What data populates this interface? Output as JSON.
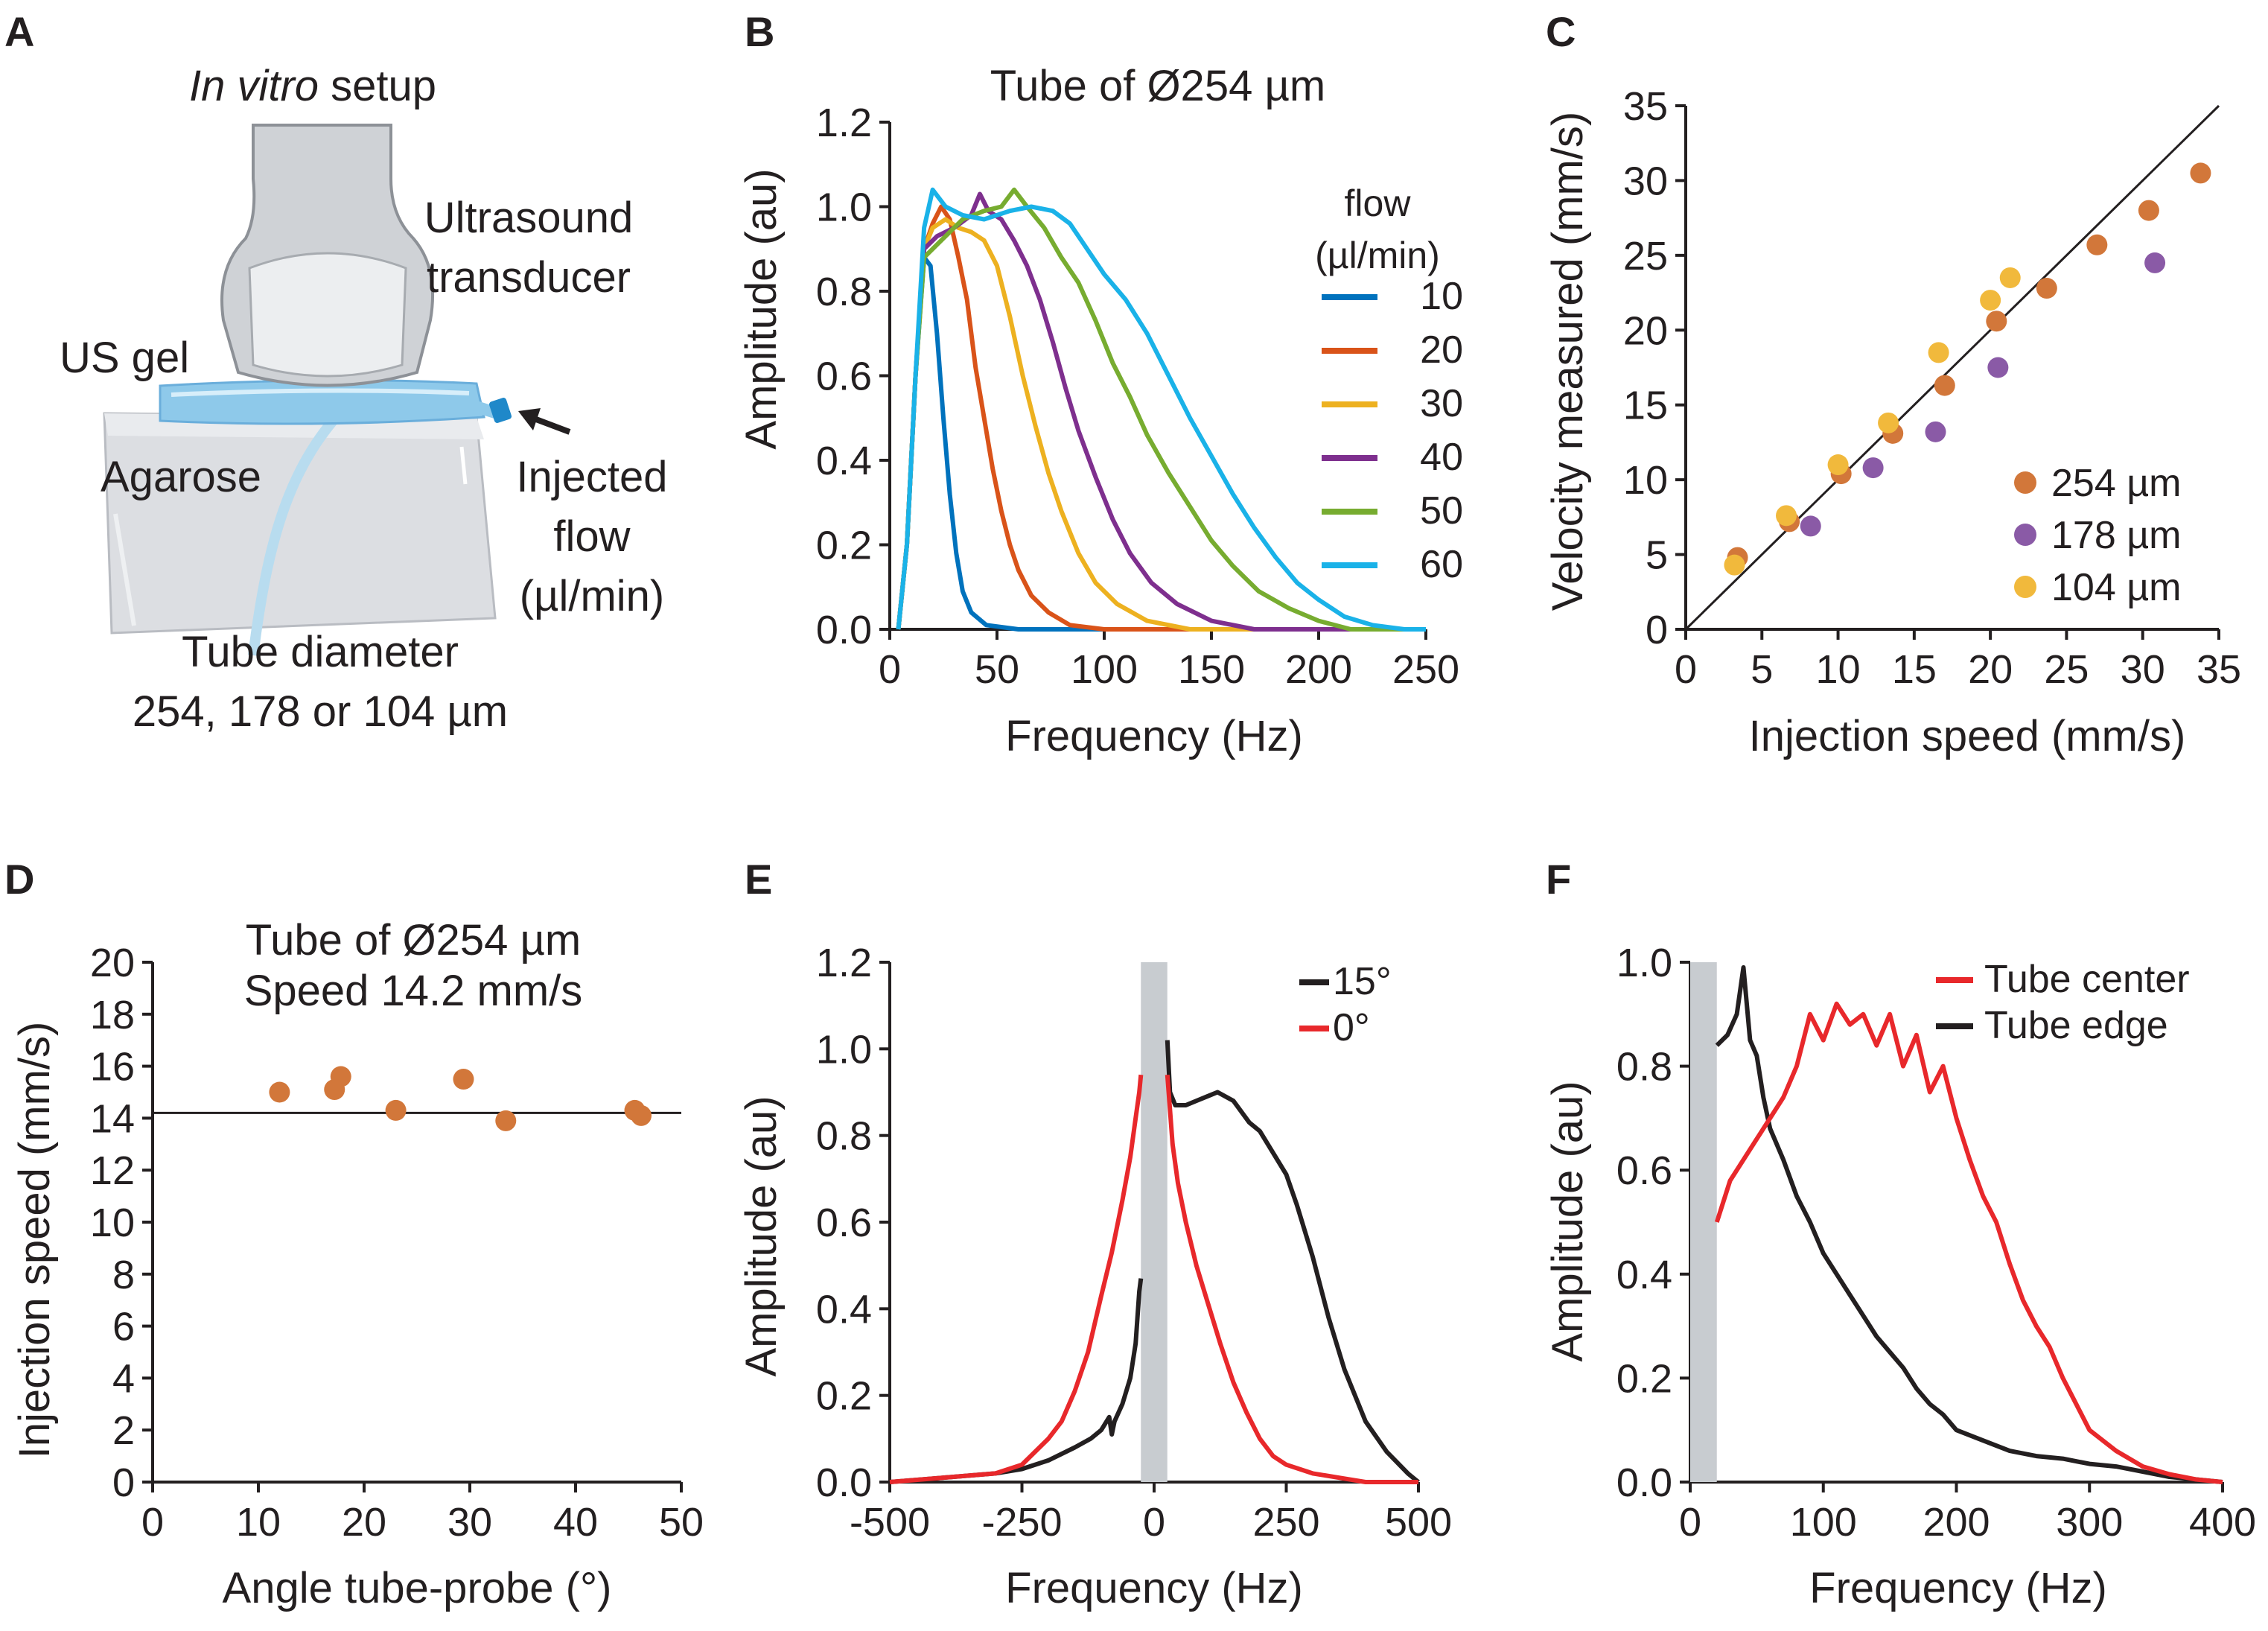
{
  "panel_labels": [
    "A",
    "B",
    "C",
    "D",
    "E",
    "F"
  ],
  "setup": {
    "title_italic": "In vitro",
    "title_rest": " setup",
    "transducer_line1": "Ultrasound",
    "transducer_line2": "transducer",
    "gel_label": "US gel",
    "agarose_label": "Agarose",
    "flow_line1": "Injected",
    "flow_line2": "flow",
    "flow_line3": "(µl/min)",
    "tube_line1": "Tube diameter",
    "tube_line2": "254, 178 or 104 µm"
  },
  "colors": {
    "flow10": "#0072bd",
    "flow20": "#d95319",
    "flow30": "#edb120",
    "flow40": "#7e2f8e",
    "flow50": "#77ac30",
    "flow60": "#1ab2e8",
    "orange_point": "#d2773a",
    "purple_point": "#8a5aa6",
    "yellow_point": "#f1b93c",
    "red_line": "#e8282b",
    "black_line": "#231f20",
    "gray_band": "#c8ccd0"
  },
  "chart_data": [
    {
      "id": "B",
      "type": "line",
      "title": "Tube of Ø254 µm",
      "xlabel": "Frequency (Hz)",
      "ylabel": "Amplitude (au)",
      "xlim": [
        0,
        250
      ],
      "ylim": [
        0,
        1.2
      ],
      "xticks": [
        "0",
        "50",
        "100",
        "150",
        "200",
        "250"
      ],
      "yticks": [
        "0.0",
        "0.2",
        "0.4",
        "0.6",
        "0.8",
        "1.0",
        "1.2"
      ],
      "legend_title_line1": "flow",
      "legend_title_line2": "(µl/min)",
      "series": [
        {
          "name": "10",
          "color_key": "flow10",
          "x": [
            4,
            8,
            12,
            16,
            19,
            22,
            25,
            28,
            31,
            34,
            38,
            45,
            60,
            250
          ],
          "y": [
            0,
            0.2,
            0.6,
            0.88,
            0.86,
            0.7,
            0.5,
            0.32,
            0.18,
            0.09,
            0.04,
            0.01,
            0,
            0
          ]
        },
        {
          "name": "20",
          "color_key": "flow20",
          "x": [
            4,
            8,
            12,
            16,
            20,
            24,
            28,
            32,
            36,
            40,
            44,
            48,
            52,
            56,
            60,
            66,
            74,
            84,
            100,
            250
          ],
          "y": [
            0,
            0.2,
            0.6,
            0.9,
            0.96,
            1.0,
            0.97,
            0.88,
            0.78,
            0.62,
            0.5,
            0.38,
            0.28,
            0.2,
            0.14,
            0.08,
            0.04,
            0.01,
            0,
            0
          ]
        },
        {
          "name": "30",
          "color_key": "flow30",
          "x": [
            4,
            8,
            12,
            16,
            20,
            26,
            32,
            38,
            44,
            50,
            56,
            62,
            68,
            74,
            80,
            88,
            96,
            106,
            120,
            140,
            250
          ],
          "y": [
            0,
            0.2,
            0.6,
            0.9,
            0.95,
            0.97,
            0.95,
            0.94,
            0.92,
            0.86,
            0.74,
            0.6,
            0.48,
            0.37,
            0.28,
            0.18,
            0.11,
            0.06,
            0.02,
            0,
            0
          ]
        },
        {
          "name": "40",
          "color_key": "flow40",
          "x": [
            4,
            8,
            12,
            16,
            22,
            30,
            38,
            42,
            46,
            52,
            58,
            64,
            70,
            76,
            82,
            88,
            96,
            104,
            112,
            122,
            134,
            150,
            170,
            250
          ],
          "y": [
            0,
            0.2,
            0.6,
            0.9,
            0.93,
            0.95,
            0.98,
            1.03,
            0.99,
            0.97,
            0.92,
            0.86,
            0.78,
            0.68,
            0.57,
            0.47,
            0.36,
            0.26,
            0.18,
            0.11,
            0.06,
            0.02,
            0,
            0
          ]
        },
        {
          "name": "50",
          "color_key": "flow50",
          "x": [
            4,
            8,
            12,
            16,
            24,
            34,
            44,
            52,
            58,
            64,
            72,
            80,
            88,
            96,
            104,
            112,
            120,
            130,
            140,
            150,
            160,
            172,
            186,
            200,
            215,
            250
          ],
          "y": [
            0,
            0.2,
            0.6,
            0.88,
            0.92,
            0.97,
            0.99,
            1.0,
            1.04,
            1.0,
            0.95,
            0.88,
            0.82,
            0.73,
            0.63,
            0.55,
            0.46,
            0.37,
            0.29,
            0.21,
            0.15,
            0.09,
            0.05,
            0.02,
            0,
            0
          ]
        },
        {
          "name": "60",
          "color_key": "flow60",
          "x": [
            4,
            8,
            12,
            16,
            20,
            26,
            34,
            44,
            56,
            66,
            76,
            84,
            92,
            100,
            110,
            120,
            130,
            140,
            150,
            160,
            170,
            180,
            190,
            200,
            212,
            225,
            240,
            250
          ],
          "y": [
            0,
            0.2,
            0.6,
            0.95,
            1.04,
            1.0,
            0.98,
            0.97,
            0.99,
            1.0,
            0.99,
            0.96,
            0.9,
            0.84,
            0.78,
            0.7,
            0.6,
            0.5,
            0.41,
            0.32,
            0.24,
            0.17,
            0.11,
            0.07,
            0.03,
            0.01,
            0,
            0
          ]
        }
      ]
    },
    {
      "id": "C",
      "type": "scatter",
      "xlabel": "Injection speed (mm/s)",
      "ylabel": "Velocity measured (mm/s)",
      "xlim": [
        0,
        35
      ],
      "ylim": [
        0,
        35
      ],
      "xticks": [
        "0",
        "5",
        "10",
        "15",
        "20",
        "25",
        "30",
        "35"
      ],
      "yticks": [
        "0",
        "5",
        "10",
        "15",
        "20",
        "25",
        "30",
        "35"
      ],
      "identity_line": true,
      "series": [
        {
          "name": "254 µm",
          "color_key": "orange_point",
          "x": [
            3.4,
            6.8,
            10.2,
            13.6,
            17.0,
            20.4,
            23.7,
            27.0,
            30.4,
            33.8
          ],
          "y": [
            4.8,
            7.2,
            10.4,
            13.1,
            16.3,
            20.6,
            22.8,
            25.7,
            28.0,
            30.5
          ]
        },
        {
          "name": "178 µm",
          "color_key": "purple_point",
          "x": [
            8.2,
            12.3,
            16.4,
            20.5,
            30.8
          ],
          "y": [
            6.9,
            10.8,
            13.2,
            17.5,
            24.5
          ]
        },
        {
          "name": "104 µm",
          "color_key": "yellow_point",
          "x": [
            3.2,
            6.6,
            10.0,
            13.3,
            16.6,
            20.0,
            21.3
          ],
          "y": [
            4.3,
            7.6,
            11.0,
            13.8,
            18.5,
            22.0,
            23.5
          ]
        }
      ]
    },
    {
      "id": "D",
      "type": "scatter",
      "title_line1": "Tube of Ø254 µm",
      "title_line2": "Speed 14.2 mm/s",
      "xlabel": "Angle tube-probe (°)",
      "ylabel": "Injection speed (mm/s)",
      "xlim": [
        0,
        50
      ],
      "ylim": [
        0,
        20
      ],
      "xticks": [
        "0",
        "10",
        "20",
        "30",
        "40",
        "50"
      ],
      "yticks": [
        "0",
        "2",
        "4",
        "6",
        "8",
        "10",
        "12",
        "14",
        "16",
        "18",
        "20"
      ],
      "reference_y": 14.2,
      "series": [
        {
          "name": "254 µm",
          "color_key": "orange_point",
          "x": [
            12.0,
            17.2,
            17.8,
            23.0,
            29.4,
            33.4,
            45.6,
            46.2
          ],
          "y": [
            15.0,
            15.1,
            15.6,
            14.3,
            15.5,
            13.9,
            14.3,
            14.1
          ]
        }
      ]
    },
    {
      "id": "E",
      "type": "line",
      "xlabel": "Frequency (Hz)",
      "ylabel": "Amplitude (au)",
      "xlim": [
        -500,
        500
      ],
      "ylim": [
        0,
        1.2
      ],
      "xticks": [
        "-500",
        "-250",
        "0",
        "250",
        "500"
      ],
      "yticks": [
        "0.0",
        "0.2",
        "0.4",
        "0.6",
        "0.8",
        "1.0",
        "1.2"
      ],
      "masked_band": [
        -25,
        25
      ],
      "series": [
        {
          "name": "15°",
          "color_key": "black_line",
          "x": [
            -500,
            -400,
            -300,
            -250,
            -200,
            -150,
            -120,
            -100,
            -85,
            -80,
            -75,
            -60,
            -45,
            -35,
            -28,
            -25
          ],
          "y": [
            0,
            0.01,
            0.02,
            0.03,
            0.05,
            0.08,
            0.1,
            0.12,
            0.15,
            0.11,
            0.14,
            0.18,
            0.24,
            0.32,
            0.44,
            0.47
          ]
        },
        {
          "name": "15°",
          "color_key": "black_line",
          "x": [
            25,
            30,
            40,
            60,
            80,
            100,
            120,
            150,
            180,
            200,
            220,
            250,
            270,
            300,
            330,
            360,
            400,
            440,
            480,
            500
          ],
          "y": [
            1.02,
            0.9,
            0.87,
            0.87,
            0.88,
            0.89,
            0.9,
            0.88,
            0.83,
            0.81,
            0.77,
            0.71,
            0.64,
            0.52,
            0.38,
            0.26,
            0.14,
            0.07,
            0.02,
            0
          ]
        },
        {
          "name": "0°",
          "color_key": "red_line",
          "x": [
            -500,
            -400,
            -300,
            -250,
            -200,
            -175,
            -150,
            -125,
            -100,
            -80,
            -60,
            -45,
            -35,
            -28,
            -25
          ],
          "y": [
            0,
            0.01,
            0.02,
            0.04,
            0.1,
            0.14,
            0.21,
            0.3,
            0.43,
            0.53,
            0.65,
            0.75,
            0.84,
            0.9,
            0.94
          ]
        },
        {
          "name": "0°",
          "color_key": "red_line",
          "x": [
            25,
            35,
            45,
            60,
            80,
            100,
            125,
            150,
            175,
            200,
            225,
            250,
            300,
            350,
            400,
            500
          ],
          "y": [
            0.94,
            0.78,
            0.69,
            0.6,
            0.5,
            0.42,
            0.32,
            0.23,
            0.16,
            0.1,
            0.06,
            0.04,
            0.02,
            0.01,
            0,
            0
          ]
        }
      ]
    },
    {
      "id": "F",
      "type": "line",
      "xlabel": "Frequency (Hz)",
      "ylabel": "Amplitude (au)",
      "xlim": [
        0,
        400
      ],
      "ylim": [
        0,
        1.0
      ],
      "xticks": [
        "0",
        "100",
        "200",
        "300",
        "400"
      ],
      "yticks": [
        "0.0",
        "0.2",
        "0.4",
        "0.6",
        "0.8",
        "1.0"
      ],
      "masked_band": [
        0,
        20
      ],
      "series": [
        {
          "name": "Tube center",
          "color_key": "red_line",
          "x": [
            20,
            30,
            40,
            50,
            60,
            70,
            80,
            90,
            100,
            110,
            120,
            130,
            140,
            150,
            160,
            170,
            180,
            190,
            200,
            210,
            220,
            230,
            240,
            250,
            260,
            270,
            280,
            290,
            300,
            320,
            340,
            360,
            380,
            400
          ],
          "y": [
            0.5,
            0.58,
            0.62,
            0.66,
            0.7,
            0.74,
            0.8,
            0.9,
            0.85,
            0.92,
            0.88,
            0.9,
            0.84,
            0.9,
            0.8,
            0.86,
            0.75,
            0.8,
            0.7,
            0.62,
            0.55,
            0.5,
            0.42,
            0.35,
            0.3,
            0.26,
            0.2,
            0.15,
            0.1,
            0.06,
            0.03,
            0.015,
            0.005,
            0
          ]
        },
        {
          "name": "Tube edge",
          "color_key": "black_line",
          "x": [
            20,
            28,
            35,
            40,
            45,
            50,
            55,
            60,
            70,
            80,
            90,
            100,
            110,
            120,
            130,
            140,
            150,
            160,
            170,
            180,
            190,
            200,
            220,
            240,
            260,
            280,
            300,
            320,
            340,
            360,
            380,
            400
          ],
          "y": [
            0.84,
            0.86,
            0.9,
            0.99,
            0.85,
            0.82,
            0.74,
            0.68,
            0.62,
            0.55,
            0.5,
            0.44,
            0.4,
            0.36,
            0.32,
            0.28,
            0.25,
            0.22,
            0.18,
            0.15,
            0.13,
            0.1,
            0.08,
            0.06,
            0.05,
            0.045,
            0.035,
            0.03,
            0.02,
            0.01,
            0.005,
            0
          ]
        }
      ]
    }
  ]
}
